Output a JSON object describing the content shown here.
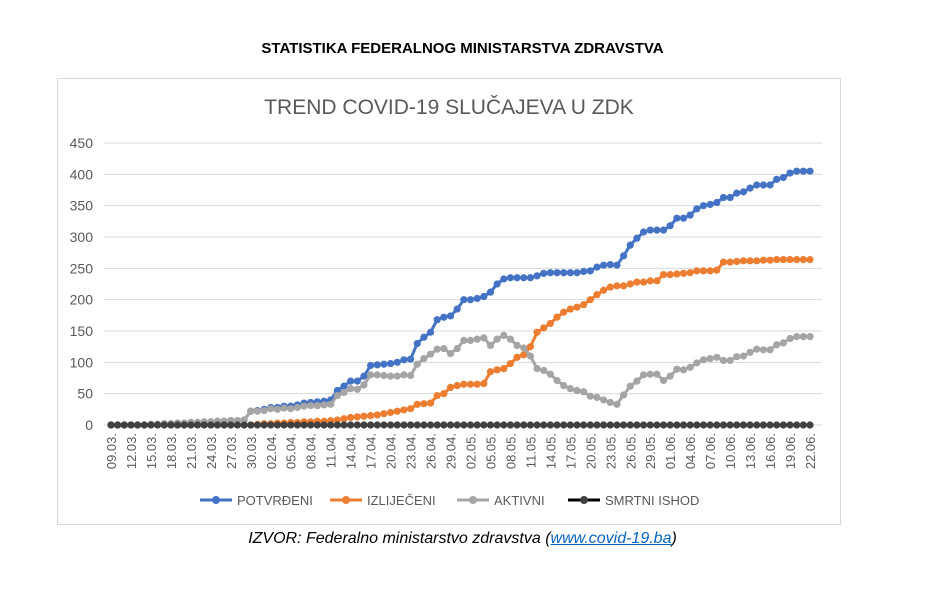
{
  "header": "STATISTIKA FEDERALNOG MINISTARSTVA ZDRAVSTVA",
  "source": {
    "prefix": "IZVOR: Federalno ministarstvo zdravstva (",
    "link": "www.covid-19.ba",
    "suffix": ")"
  },
  "chart_data": {
    "type": "line",
    "title": "TREND COVID-19 SLUČAJEVA U ZDK",
    "xlabel": "",
    "ylabel": "",
    "ylim": [
      0,
      450
    ],
    "yticks": [
      0,
      50,
      100,
      150,
      200,
      250,
      300,
      350,
      400,
      450
    ],
    "tick_step_days": 3,
    "tick_labels": [
      "09.03.",
      "12.03.",
      "15.03.",
      "18.03.",
      "21.03.",
      "24.03.",
      "27.03.",
      "30.03.",
      "02.04.",
      "05.04.",
      "08.04.",
      "11.04.",
      "14.04.",
      "17.04.",
      "20.04.",
      "23.04.",
      "26.04.",
      "29.04.",
      "02.05.",
      "05.05.",
      "08.05.",
      "11.05.",
      "14.05.",
      "17.05.",
      "20.05.",
      "23.05.",
      "26.05.",
      "29.05.",
      "01.06.",
      "04.06.",
      "07.06.",
      "10.06.",
      "13.06.",
      "16.06.",
      "19.06.",
      "22.06."
    ],
    "grid": true,
    "legend_position": "bottom",
    "series": [
      {
        "name": "POTVRĐENI",
        "color": "#4472c4",
        "values": [
          0,
          0,
          0,
          0,
          0,
          0,
          1,
          1,
          2,
          2,
          3,
          3,
          4,
          4,
          5,
          5,
          6,
          6,
          7,
          7,
          8,
          22,
          23,
          25,
          28,
          28,
          30,
          30,
          32,
          35,
          36,
          37,
          38,
          40,
          55,
          62,
          70,
          70,
          78,
          95,
          96,
          97,
          98,
          100,
          104,
          105,
          130,
          140,
          148,
          168,
          172,
          174,
          185,
          200,
          200,
          202,
          205,
          212,
          225,
          233,
          235,
          235,
          235,
          235,
          238,
          242,
          243,
          243,
          243,
          243,
          243,
          245,
          246,
          252,
          255,
          256,
          255,
          270,
          287,
          298,
          308,
          311,
          311,
          311,
          318,
          330,
          330,
          335,
          345,
          350,
          352,
          355,
          363,
          363,
          370,
          372,
          378,
          383,
          383,
          383,
          392,
          395,
          402,
          405,
          405,
          405
        ]
      },
      {
        "name": "IZLIJEČENI",
        "color": "#ed7d31",
        "values": [
          0,
          0,
          0,
          0,
          0,
          0,
          0,
          0,
          0,
          0,
          0,
          0,
          0,
          0,
          0,
          0,
          0,
          0,
          0,
          0,
          0,
          0,
          1,
          2,
          2,
          3,
          3,
          4,
          4,
          5,
          5,
          6,
          6,
          7,
          8,
          10,
          12,
          13,
          14,
          15,
          16,
          18,
          20,
          22,
          24,
          26,
          33,
          34,
          35,
          47,
          50,
          60,
          63,
          65,
          65,
          65,
          66,
          85,
          88,
          90,
          98,
          108,
          112,
          125,
          148,
          155,
          162,
          172,
          180,
          185,
          188,
          192,
          200,
          208,
          215,
          220,
          222,
          222,
          225,
          228,
          228,
          230,
          230,
          240,
          240,
          241,
          242,
          243,
          246,
          246,
          246,
          247,
          260,
          260,
          261,
          262,
          262,
          262,
          263,
          263,
          264,
          264,
          264,
          264,
          264,
          264
        ]
      },
      {
        "name": "AKTIVNI",
        "color": "#a5a5a5",
        "values": [
          0,
          0,
          0,
          0,
          0,
          0,
          1,
          1,
          2,
          2,
          3,
          3,
          4,
          4,
          5,
          5,
          6,
          6,
          7,
          7,
          8,
          22,
          22,
          23,
          26,
          25,
          27,
          26,
          28,
          30,
          31,
          31,
          32,
          33,
          47,
          52,
          58,
          57,
          64,
          80,
          80,
          79,
          78,
          78,
          80,
          79,
          97,
          106,
          113,
          121,
          122,
          114,
          122,
          135,
          135,
          137,
          139,
          127,
          137,
          143,
          137,
          127,
          123,
          110,
          90,
          87,
          81,
          71,
          63,
          58,
          55,
          53,
          46,
          44,
          40,
          36,
          33,
          48,
          62,
          70,
          80,
          81,
          81,
          71,
          78,
          89,
          88,
          92,
          99,
          104,
          106,
          108,
          103,
          103,
          109,
          110,
          116,
          121,
          120,
          120,
          128,
          131,
          138,
          141,
          141,
          141
        ]
      },
      {
        "name": "SMRTNI ISHOD",
        "color": "#000000",
        "marker_color": "#404040",
        "values": [
          0,
          0,
          0,
          0,
          0,
          0,
          0,
          0,
          0,
          0,
          0,
          0,
          0,
          0,
          0,
          0,
          0,
          0,
          0,
          0,
          0,
          0,
          0,
          0,
          0,
          0,
          0,
          0,
          0,
          0,
          0,
          0,
          0,
          0,
          0,
          0,
          0,
          0,
          0,
          0,
          0,
          0,
          0,
          0,
          0,
          0,
          0,
          0,
          0,
          0,
          0,
          0,
          0,
          0,
          0,
          0,
          0,
          0,
          0,
          0,
          0,
          0,
          0,
          0,
          0,
          0,
          0,
          0,
          0,
          0,
          0,
          0,
          0,
          0,
          0,
          0,
          0,
          0,
          0,
          0,
          0,
          0,
          0,
          0,
          0,
          0,
          0,
          0,
          0,
          0,
          0,
          0,
          0,
          0,
          0,
          0,
          0,
          0,
          0,
          0,
          0,
          0,
          0,
          0,
          0,
          0
        ]
      }
    ]
  }
}
